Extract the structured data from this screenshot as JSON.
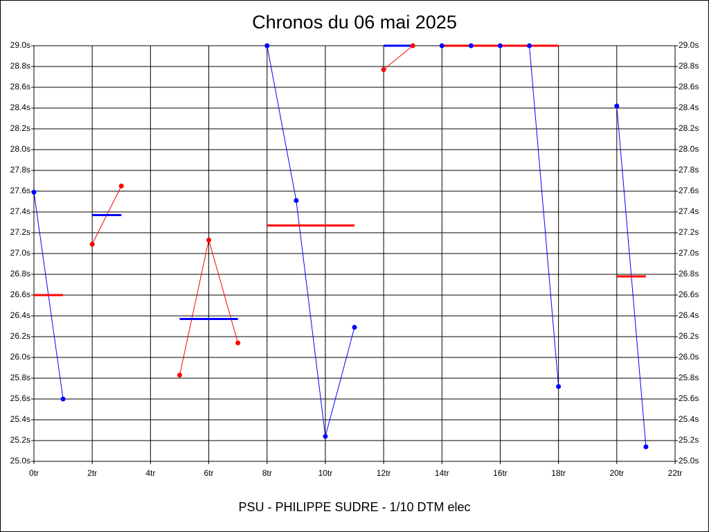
{
  "chart_data": {
    "type": "line",
    "title": "Chronos du 06 mai 2025",
    "footer": "PSU - PHILIPPE SUDRE - 1/10 DTM elec",
    "x": [
      0,
      1,
      2,
      3,
      4,
      5,
      6,
      7,
      8,
      9,
      10,
      11,
      12,
      13,
      14,
      15,
      16,
      17,
      18,
      19,
      20,
      21
    ],
    "series": [
      {
        "color": "#0000ff",
        "values": [
          27.59,
          25.6,
          null,
          null,
          null,
          null,
          null,
          null,
          29.0,
          27.51,
          25.24,
          26.29,
          null,
          null,
          29.0,
          29.0,
          29.0,
          29.0,
          25.72,
          null,
          28.42,
          25.14
        ]
      },
      {
        "color": "#ff0000",
        "values": [
          null,
          null,
          27.09,
          27.65,
          null,
          25.83,
          27.13,
          26.14,
          null,
          null,
          null,
          null,
          28.77,
          29.0,
          null,
          null,
          null,
          null,
          null,
          null,
          null,
          null
        ]
      }
    ],
    "averages": [
      {
        "start": 0,
        "end": 1,
        "value": 26.6,
        "color": "#ff0000"
      },
      {
        "start": 2,
        "end": 3,
        "value": 27.37,
        "color": "#0000ff"
      },
      {
        "start": 5,
        "end": 7,
        "value": 26.37,
        "color": "#0000ff"
      },
      {
        "start": 8,
        "end": 11,
        "value": 27.27,
        "color": "#ff0000"
      },
      {
        "start": 12,
        "end": 13,
        "value": 29.0,
        "color": "#0000ff"
      },
      {
        "start": 14,
        "end": 18,
        "value": 29.0,
        "color": "#ff0000"
      },
      {
        "start": 20,
        "end": 21,
        "value": 26.78,
        "color": "#ff0000"
      }
    ],
    "xlim": [
      0,
      22
    ],
    "xticks": [
      {
        "value": 0,
        "label": "0tr"
      },
      {
        "value": 2,
        "label": "2tr"
      },
      {
        "value": 4,
        "label": "4tr"
      },
      {
        "value": 6,
        "label": "6tr"
      },
      {
        "value": 8,
        "label": "8tr"
      },
      {
        "value": 10,
        "label": "10tr"
      },
      {
        "value": 12,
        "label": "12tr"
      },
      {
        "value": 14,
        "label": "14tr"
      },
      {
        "value": 16,
        "label": "16tr"
      },
      {
        "value": 18,
        "label": "18tr"
      },
      {
        "value": 20,
        "label": "20tr"
      },
      {
        "value": 22,
        "label": "22tr"
      }
    ],
    "ylim": [
      25.0,
      29.0
    ],
    "yticks": [
      {
        "value": 25.0,
        "label": "25.0s"
      },
      {
        "value": 25.2,
        "label": "25.2s"
      },
      {
        "value": 25.4,
        "label": "25.4s"
      },
      {
        "value": 25.6,
        "label": "25.6s"
      },
      {
        "value": 25.8,
        "label": "25.8s"
      },
      {
        "value": 26.0,
        "label": "26.0s"
      },
      {
        "value": 26.2,
        "label": "26.2s"
      },
      {
        "value": 26.4,
        "label": "26.4s"
      },
      {
        "value": 26.6,
        "label": "26.6s"
      },
      {
        "value": 26.8,
        "label": "26.8s"
      },
      {
        "value": 27.0,
        "label": "27.0s"
      },
      {
        "value": 27.2,
        "label": "27.2s"
      },
      {
        "value": 27.4,
        "label": "27.4s"
      },
      {
        "value": 27.6,
        "label": "27.6s"
      },
      {
        "value": 27.8,
        "label": "27.8s"
      },
      {
        "value": 28.0,
        "label": "28.0s"
      },
      {
        "value": 28.2,
        "label": "28.2s"
      },
      {
        "value": 28.4,
        "label": "28.4s"
      },
      {
        "value": 28.6,
        "label": "28.6s"
      },
      {
        "value": 28.8,
        "label": "28.8s"
      },
      {
        "value": 29.0,
        "label": "29.0s"
      }
    ],
    "grid": true
  }
}
